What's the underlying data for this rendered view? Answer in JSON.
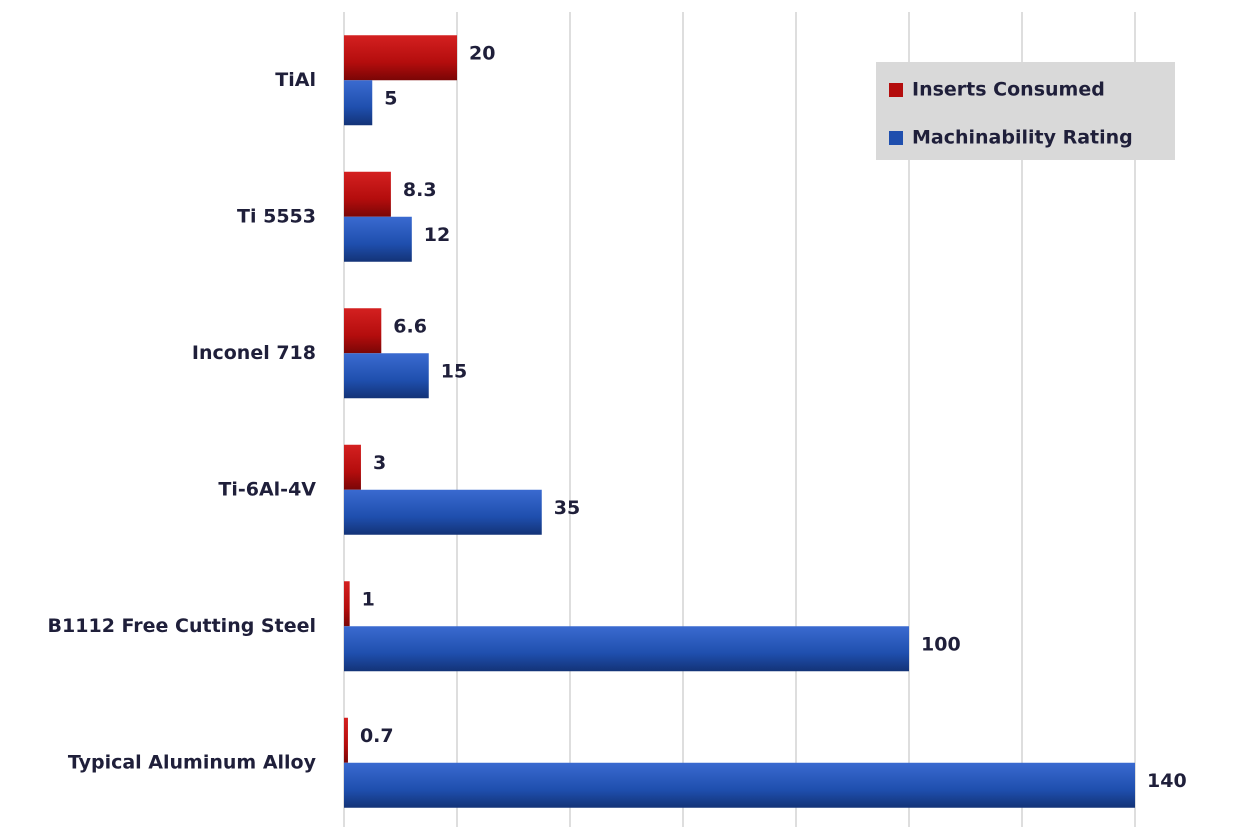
{
  "chart_data": {
    "type": "hbar",
    "categories": [
      "TiAl",
      "Ti 5553",
      "Inconel 718",
      "Ti-6Al-4V",
      "B1112 Free Cutting Steel",
      "Typical Aluminum Alloy"
    ],
    "series": [
      {
        "name": "Inserts Consumed",
        "color": "#b40d0d",
        "values": [
          20,
          8.3,
          6.6,
          3,
          1,
          0.7
        ]
      },
      {
        "name": "Machinability Rating",
        "color": "#1f4fae",
        "values": [
          5,
          12,
          15,
          35,
          100,
          140
        ]
      }
    ],
    "xlim": [
      0,
      140
    ],
    "xticks": [
      0,
      20,
      40,
      60,
      80,
      100,
      120,
      140
    ],
    "grid": true,
    "legend": "top-right"
  }
}
